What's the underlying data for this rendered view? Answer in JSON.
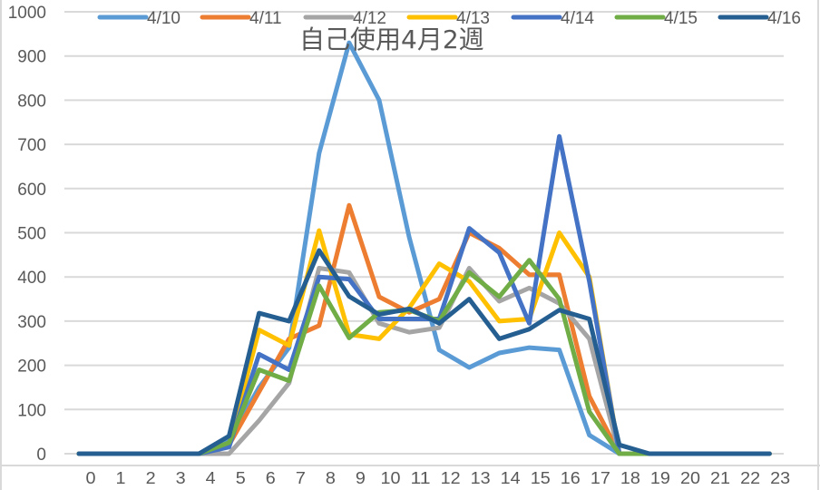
{
  "chart_data": {
    "type": "line",
    "title": "自己使用4月2週",
    "xlabel": "",
    "ylabel": "",
    "ylim": [
      0,
      1000
    ],
    "yticks": [
      0,
      100,
      200,
      300,
      400,
      500,
      600,
      700,
      800,
      900,
      1000
    ],
    "x": [
      0,
      1,
      2,
      3,
      4,
      5,
      6,
      7,
      8,
      9,
      10,
      11,
      12,
      13,
      14,
      15,
      16,
      17,
      18,
      19,
      20,
      21,
      22,
      23
    ],
    "grid": true,
    "legend_position": "top",
    "series": [
      {
        "name": "4/10",
        "color": "#5B9BD5",
        "values": [
          0,
          0,
          0,
          0,
          0,
          30,
          150,
          240,
          680,
          930,
          800,
          490,
          235,
          195,
          228,
          240,
          235,
          42,
          0,
          0,
          0,
          0,
          0,
          0
        ]
      },
      {
        "name": "4/11",
        "color": "#ED7D31",
        "values": [
          0,
          0,
          0,
          0,
          0,
          20,
          140,
          260,
          290,
          562,
          355,
          320,
          350,
          500,
          465,
          405,
          405,
          130,
          0,
          0,
          0,
          0,
          0,
          0
        ]
      },
      {
        "name": "4/12",
        "color": "#A5A5A5",
        "values": [
          0,
          0,
          0,
          0,
          0,
          0,
          75,
          160,
          420,
          410,
          295,
          275,
          285,
          420,
          345,
          375,
          340,
          260,
          0,
          0,
          0,
          0,
          0,
          0
        ]
      },
      {
        "name": "4/13",
        "color": "#FFC000",
        "values": [
          0,
          0,
          0,
          0,
          0,
          20,
          280,
          245,
          505,
          270,
          260,
          330,
          430,
          390,
          300,
          305,
          500,
          400,
          0,
          0,
          0,
          0,
          0,
          0
        ]
      },
      {
        "name": "4/14",
        "color": "#4472C4",
        "values": [
          0,
          0,
          0,
          0,
          0,
          15,
          225,
          190,
          400,
          395,
          305,
          305,
          305,
          510,
          455,
          295,
          718,
          390,
          0,
          0,
          0,
          0,
          0,
          0
        ]
      },
      {
        "name": "4/15",
        "color": "#70AD47",
        "values": [
          0,
          0,
          0,
          0,
          0,
          25,
          190,
          165,
          380,
          262,
          320,
          325,
          300,
          410,
          355,
          438,
          350,
          95,
          0,
          0,
          0,
          0,
          0,
          0
        ]
      },
      {
        "name": "4/16",
        "color": "#255E91",
        "values": [
          0,
          0,
          0,
          0,
          0,
          40,
          318,
          300,
          460,
          356,
          315,
          328,
          295,
          350,
          260,
          282,
          325,
          305,
          20,
          0,
          0,
          0,
          0,
          0
        ]
      }
    ]
  },
  "legend": {
    "items": [
      "4/10",
      "4/11",
      "4/12",
      "4/13",
      "4/14",
      "4/15",
      "4/16"
    ]
  },
  "axis": {
    "y_labels": [
      "0",
      "100",
      "200",
      "300",
      "400",
      "500",
      "600",
      "700",
      "800",
      "900",
      "1000"
    ],
    "x_labels": [
      "0",
      "1",
      "2",
      "3",
      "4",
      "5",
      "6",
      "7",
      "8",
      "9",
      "10",
      "11",
      "12",
      "13",
      "14",
      "15",
      "16",
      "17",
      "18",
      "19",
      "20",
      "21",
      "22",
      "23"
    ]
  }
}
